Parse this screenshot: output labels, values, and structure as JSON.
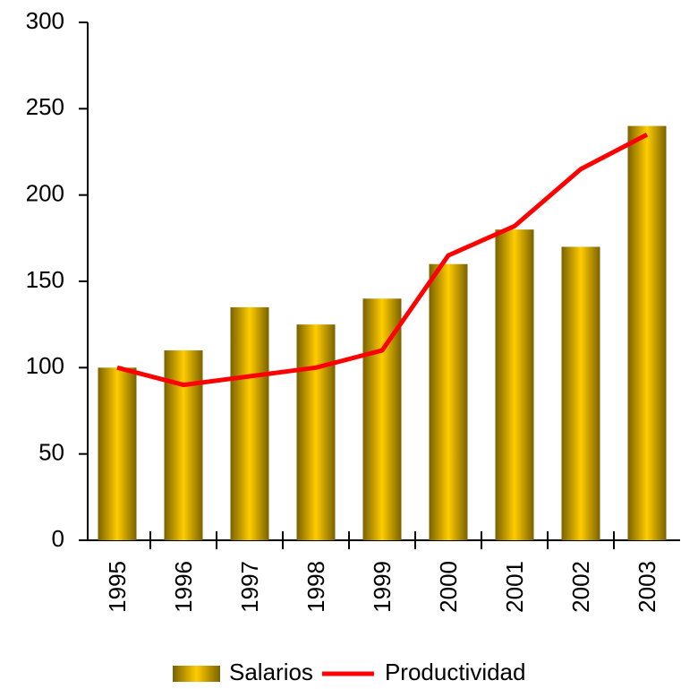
{
  "chart_data": {
    "type": "bar",
    "categories": [
      "1995",
      "1996",
      "1997",
      "1998",
      "1999",
      "2000",
      "2001",
      "2002",
      "2003"
    ],
    "series": [
      {
        "name": "Salarios",
        "color": "#ffcc00",
        "values": [
          100,
          110,
          135,
          125,
          140,
          160,
          180,
          170,
          240
        ]
      },
      {
        "name": "Productividad",
        "type": "line",
        "color": "#ff0000",
        "values": [
          100,
          90,
          95,
          100,
          110,
          165,
          182,
          215,
          235
        ]
      }
    ],
    "ylim": [
      0,
      300
    ],
    "yticks": [
      0,
      50,
      100,
      150,
      200,
      250,
      300
    ],
    "grid": false,
    "legend": "bottom"
  }
}
